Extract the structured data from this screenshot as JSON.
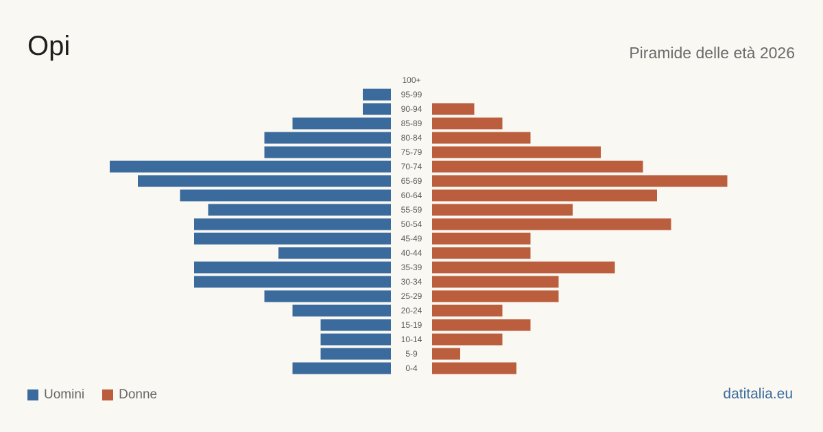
{
  "header": {
    "title": "Opi",
    "subtitle": "Piramide delle età 2026"
  },
  "legend": {
    "male_label": "Uomini",
    "female_label": "Donne"
  },
  "footer": {
    "brand": "datitalia.eu"
  },
  "colors": {
    "male": "#3b6a9c",
    "female": "#bb5e3d",
    "background": "#faf8f3",
    "label": "#5a5a5a"
  },
  "chart_data": {
    "type": "bar",
    "orientation": "horizontal-pyramid",
    "categories": [
      "100+",
      "95-99",
      "90-94",
      "85-89",
      "80-84",
      "75-79",
      "70-74",
      "65-69",
      "60-64",
      "55-59",
      "50-54",
      "45-49",
      "40-44",
      "35-39",
      "30-34",
      "25-29",
      "20-24",
      "15-19",
      "10-14",
      "5-9",
      "0-4"
    ],
    "series": [
      {
        "name": "Uomini",
        "values": [
          0,
          2,
          2,
          7,
          9,
          9,
          20,
          18,
          15,
          13,
          14,
          14,
          8,
          14,
          14,
          9,
          7,
          5,
          5,
          5,
          7
        ]
      },
      {
        "name": "Donne",
        "values": [
          0,
          0,
          3,
          5,
          7,
          12,
          15,
          21,
          16,
          10,
          17,
          7,
          7,
          13,
          9,
          9,
          5,
          7,
          5,
          2,
          6
        ]
      }
    ],
    "xlim": [
      0,
      21
    ],
    "grid": false,
    "legend_position": "bottom-left"
  }
}
